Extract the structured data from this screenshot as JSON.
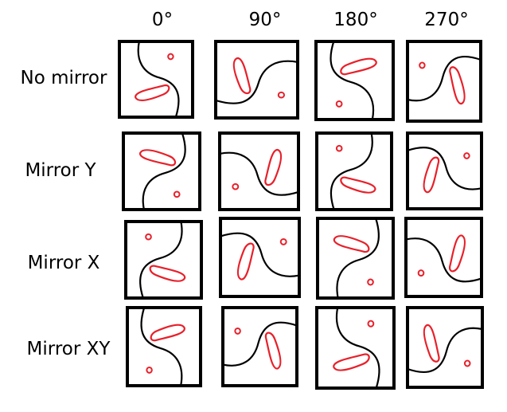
{
  "columns": [
    {
      "label": "0°"
    },
    {
      "label": "90°"
    },
    {
      "label": "180°"
    },
    {
      "label": "270°"
    }
  ],
  "rows": [
    {
      "label": "No mirror"
    },
    {
      "label": "Mirror Y"
    },
    {
      "label": "Mirror X"
    },
    {
      "label": "Mirror XY"
    }
  ],
  "colors": {
    "frame": "#000000",
    "curve": "#000000",
    "shape": "#e8202a"
  },
  "icons": {
    "tile-content": "s-curve-with-red-blob-and-circle"
  }
}
